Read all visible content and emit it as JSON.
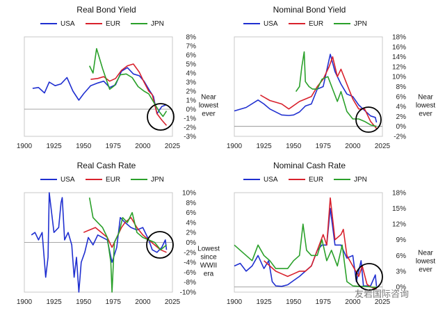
{
  "colors": {
    "USA": "#1f2fd0",
    "EUR": "#d8212c",
    "JPN": "#2aa02a"
  },
  "watermark": "友岩国际咨询",
  "chart_data": [
    {
      "type": "line",
      "title": "Real Bond Yield",
      "legend": [
        "USA",
        "EUR",
        "JPN"
      ],
      "xticks": [
        "1900",
        "1925",
        "1950",
        "1975",
        "2000",
        "2025"
      ],
      "xlim": [
        1900,
        2025
      ],
      "yticks": [
        "8%",
        "7%",
        "6%",
        "5%",
        "4%",
        "3%",
        "2%",
        "1%",
        "0%",
        "-1%",
        "-2%",
        "-3%"
      ],
      "ylim": [
        -3,
        8
      ],
      "annotation": [
        "Near",
        "lowest",
        "ever"
      ],
      "series": [
        {
          "name": "USA",
          "x": [
            1907,
            1912,
            1917,
            1921,
            1926,
            1931,
            1936,
            1941,
            1946,
            1950,
            1956,
            1962,
            1967,
            1972,
            1977,
            1982,
            1987,
            1992,
            1997,
            2001,
            2006,
            2009,
            2012,
            2016,
            2020
          ],
          "y": [
            2.3,
            2.4,
            1.8,
            3.0,
            2.6,
            2.8,
            3.5,
            2.0,
            1.0,
            1.7,
            2.6,
            2.9,
            3.1,
            2.4,
            2.7,
            4.2,
            4.6,
            3.9,
            3.7,
            3.1,
            2.0,
            1.4,
            -0.5,
            0.3,
            0.5
          ]
        },
        {
          "name": "EUR",
          "x": [
            1956,
            1962,
            1967,
            1972,
            1977,
            1982,
            1987,
            1992,
            1997,
            2001,
            2005,
            2008,
            2012,
            2016,
            2020
          ],
          "y": [
            3.3,
            3.4,
            3.6,
            3.1,
            3.4,
            4.3,
            4.8,
            5.0,
            4.1,
            3.0,
            2.0,
            1.6,
            -0.5,
            -1.2,
            -1.8
          ]
        },
        {
          "name": "JPN",
          "x": [
            1955,
            1958,
            1961,
            1966,
            1972,
            1976,
            1981,
            1986,
            1991,
            1996,
            2001,
            2005,
            2010,
            2014,
            2017,
            2020
          ],
          "y": [
            4.8,
            4.0,
            6.7,
            4.5,
            2.2,
            2.6,
            3.8,
            3.9,
            3.5,
            2.5,
            2.0,
            1.7,
            0.6,
            -0.3,
            -0.8,
            -0.2
          ]
        }
      ]
    },
    {
      "type": "line",
      "title": "Nominal Bond Yield",
      "legend": [
        "USA",
        "EUR",
        "JPN"
      ],
      "xticks": [
        "1900",
        "1925",
        "1950",
        "1975",
        "2000",
        "2025"
      ],
      "xlim": [
        1900,
        2025
      ],
      "yticks": [
        "18%",
        "16%",
        "14%",
        "12%",
        "10%",
        "8%",
        "6%",
        "4%",
        "2%",
        "0%",
        "-2%"
      ],
      "ylim": [
        -2,
        18
      ],
      "annotation": [
        "Near",
        "lowest",
        "ever"
      ],
      "series": [
        {
          "name": "USA",
          "x": [
            1900,
            1910,
            1920,
            1925,
            1930,
            1940,
            1946,
            1950,
            1955,
            1960,
            1965,
            1970,
            1975,
            1981,
            1985,
            1990,
            1995,
            2000,
            2005,
            2010,
            2015,
            2019,
            2020
          ],
          "y": [
            3.1,
            3.8,
            5.3,
            4.5,
            3.5,
            2.3,
            2.2,
            2.3,
            2.9,
            4.1,
            4.5,
            7.5,
            8.0,
            14.5,
            11.0,
            8.5,
            6.5,
            6.0,
            4.3,
            3.2,
            2.1,
            1.8,
            0.8
          ]
        },
        {
          "name": "EUR",
          "x": [
            1922,
            1930,
            1940,
            1946,
            1955,
            1960,
            1965,
            1970,
            1975,
            1980,
            1983,
            1987,
            1990,
            1995,
            2000,
            2005,
            2010,
            2015,
            2020
          ],
          "y": [
            6.3,
            5.2,
            4.5,
            3.5,
            5.0,
            5.5,
            6.0,
            8.0,
            9.5,
            12.0,
            14.0,
            10.0,
            11.5,
            8.5,
            5.5,
            3.5,
            3.5,
            1.0,
            -0.4
          ]
        },
        {
          "name": "JPN",
          "x": [
            1952,
            1955,
            1957,
            1959,
            1960,
            1963,
            1966,
            1970,
            1974,
            1979,
            1983,
            1987,
            1990,
            1995,
            2000,
            2005,
            2010,
            2015,
            2020
          ],
          "y": [
            7.0,
            8.0,
            12.0,
            15.0,
            9.0,
            8.0,
            7.5,
            7.5,
            9.5,
            10.0,
            7.5,
            5.0,
            7.0,
            3.0,
            1.5,
            1.5,
            1.0,
            0.3,
            0.0
          ]
        }
      ]
    },
    {
      "type": "line",
      "title": "Real Cash Rate",
      "legend": [
        "USA",
        "EUR",
        "JPN"
      ],
      "xticks": [
        "1900",
        "1925",
        "1950",
        "1975",
        "2000",
        "2025"
      ],
      "xlim": [
        1900,
        2025
      ],
      "yticks": [
        "10%",
        "8%",
        "6%",
        "4%",
        "2%",
        "0%",
        "-2%",
        "-4%",
        "-6%",
        "-8%",
        "-10%"
      ],
      "ylim": [
        -10,
        10
      ],
      "annotation": [
        "Lowest",
        "since",
        "WWII",
        "era"
      ],
      "series": [
        {
          "name": "USA",
          "x": [
            1906,
            1909,
            1912,
            1915,
            1917,
            1918,
            1920,
            1921,
            1922,
            1925,
            1929,
            1931,
            1932,
            1934,
            1937,
            1940,
            1942,
            1944,
            1946,
            1948,
            1951,
            1954,
            1958,
            1962,
            1966,
            1970,
            1974,
            1978,
            1981,
            1985,
            1990,
            1995,
            2000,
            2005,
            2008,
            2012,
            2016,
            2019,
            2020
          ],
          "y": [
            1.5,
            2.0,
            0.5,
            2.0,
            -4.0,
            -7.0,
            -3.0,
            10.0,
            8.0,
            2.0,
            3.0,
            8.0,
            9.0,
            0.5,
            2.0,
            -0.5,
            -7.0,
            -3.0,
            -10.0,
            -4.0,
            -2.0,
            1.0,
            -0.5,
            1.5,
            1.0,
            0.5,
            -4.0,
            -1.0,
            5.0,
            4.0,
            3.0,
            2.5,
            3.0,
            0.5,
            -1.5,
            -2.0,
            -1.0,
            0.5,
            -1.5
          ]
        },
        {
          "name": "EUR",
          "x": [
            1950,
            1955,
            1960,
            1965,
            1970,
            1974,
            1978,
            1982,
            1985,
            1990,
            1995,
            2000,
            2005,
            2010,
            2015,
            2020
          ],
          "y": [
            2.0,
            2.5,
            3.0,
            2.0,
            1.0,
            -1.0,
            1.0,
            3.0,
            4.0,
            5.0,
            3.0,
            1.5,
            0.5,
            -0.5,
            -1.5,
            -2.0
          ]
        },
        {
          "name": "JPN",
          "x": [
            1955,
            1958,
            1962,
            1966,
            1970,
            1973,
            1974,
            1976,
            1980,
            1983,
            1987,
            1991,
            1995,
            2000,
            2005,
            2010,
            2015,
            2020
          ],
          "y": [
            9.0,
            5.0,
            4.0,
            3.0,
            1.0,
            -4.0,
            -10.0,
            0.0,
            2.0,
            5.0,
            4.0,
            6.0,
            2.0,
            1.0,
            0.5,
            0.0,
            -1.5,
            -0.5
          ]
        }
      ]
    },
    {
      "type": "line",
      "title": "Nominal Cash Rate",
      "legend": [
        "USA",
        "EUR",
        "JPN"
      ],
      "xticks": [
        "1900",
        "1925",
        "1950",
        "1975",
        "2000",
        "2025"
      ],
      "xlim": [
        1900,
        2025
      ],
      "yticks": [
        "18%",
        "15%",
        "12%",
        "9%",
        "6%",
        "3%",
        "0%"
      ],
      "ylim": [
        -1,
        18
      ],
      "annotation": [
        "Near",
        "lowest",
        "ever"
      ],
      "series": [
        {
          "name": "USA",
          "x": [
            1900,
            1905,
            1910,
            1915,
            1920,
            1925,
            1929,
            1932,
            1935,
            1940,
            1945,
            1950,
            1955,
            1960,
            1965,
            1970,
            1974,
            1978,
            1981,
            1985,
            1990,
            1995,
            2000,
            2003,
            2007,
            2009,
            2015,
            2019,
            2020
          ],
          "y": [
            4.0,
            4.5,
            3.0,
            4.0,
            6.0,
            3.5,
            5.0,
            1.0,
            0.2,
            0.1,
            0.4,
            1.2,
            2.0,
            3.0,
            4.0,
            7.0,
            8.0,
            8.0,
            15.0,
            8.0,
            8.0,
            5.5,
            6.0,
            1.0,
            5.0,
            0.2,
            0.2,
            2.3,
            0.1
          ]
        },
        {
          "name": "EUR",
          "x": [
            1925,
            1930,
            1935,
            1940,
            1945,
            1950,
            1955,
            1960,
            1965,
            1970,
            1975,
            1978,
            1981,
            1985,
            1990,
            1992,
            1995,
            2000,
            2005,
            2008,
            2012,
            2015,
            2020
          ],
          "y": [
            5.0,
            4.0,
            3.0,
            2.5,
            2.0,
            2.5,
            3.0,
            3.0,
            4.0,
            7.0,
            10.0,
            8.0,
            17.0,
            9.0,
            10.0,
            11.0,
            6.0,
            4.0,
            2.0,
            4.0,
            0.5,
            0.0,
            -0.4
          ]
        },
        {
          "name": "JPN",
          "x": [
            1900,
            1905,
            1910,
            1915,
            1920,
            1925,
            1930,
            1935,
            1940,
            1945,
            1950,
            1955,
            1958,
            1961,
            1965,
            1970,
            1974,
            1978,
            1982,
            1987,
            1991,
            1995,
            2000,
            2005,
            2010,
            2015,
            2020
          ],
          "y": [
            8.0,
            7.0,
            6.0,
            5.0,
            8.0,
            6.0,
            5.0,
            3.5,
            3.5,
            3.5,
            5.0,
            6.0,
            12.0,
            7.0,
            6.0,
            6.0,
            9.0,
            5.0,
            7.0,
            4.0,
            8.0,
            1.0,
            0.2,
            0.1,
            0.1,
            0.0,
            -0.1
          ]
        }
      ]
    }
  ]
}
